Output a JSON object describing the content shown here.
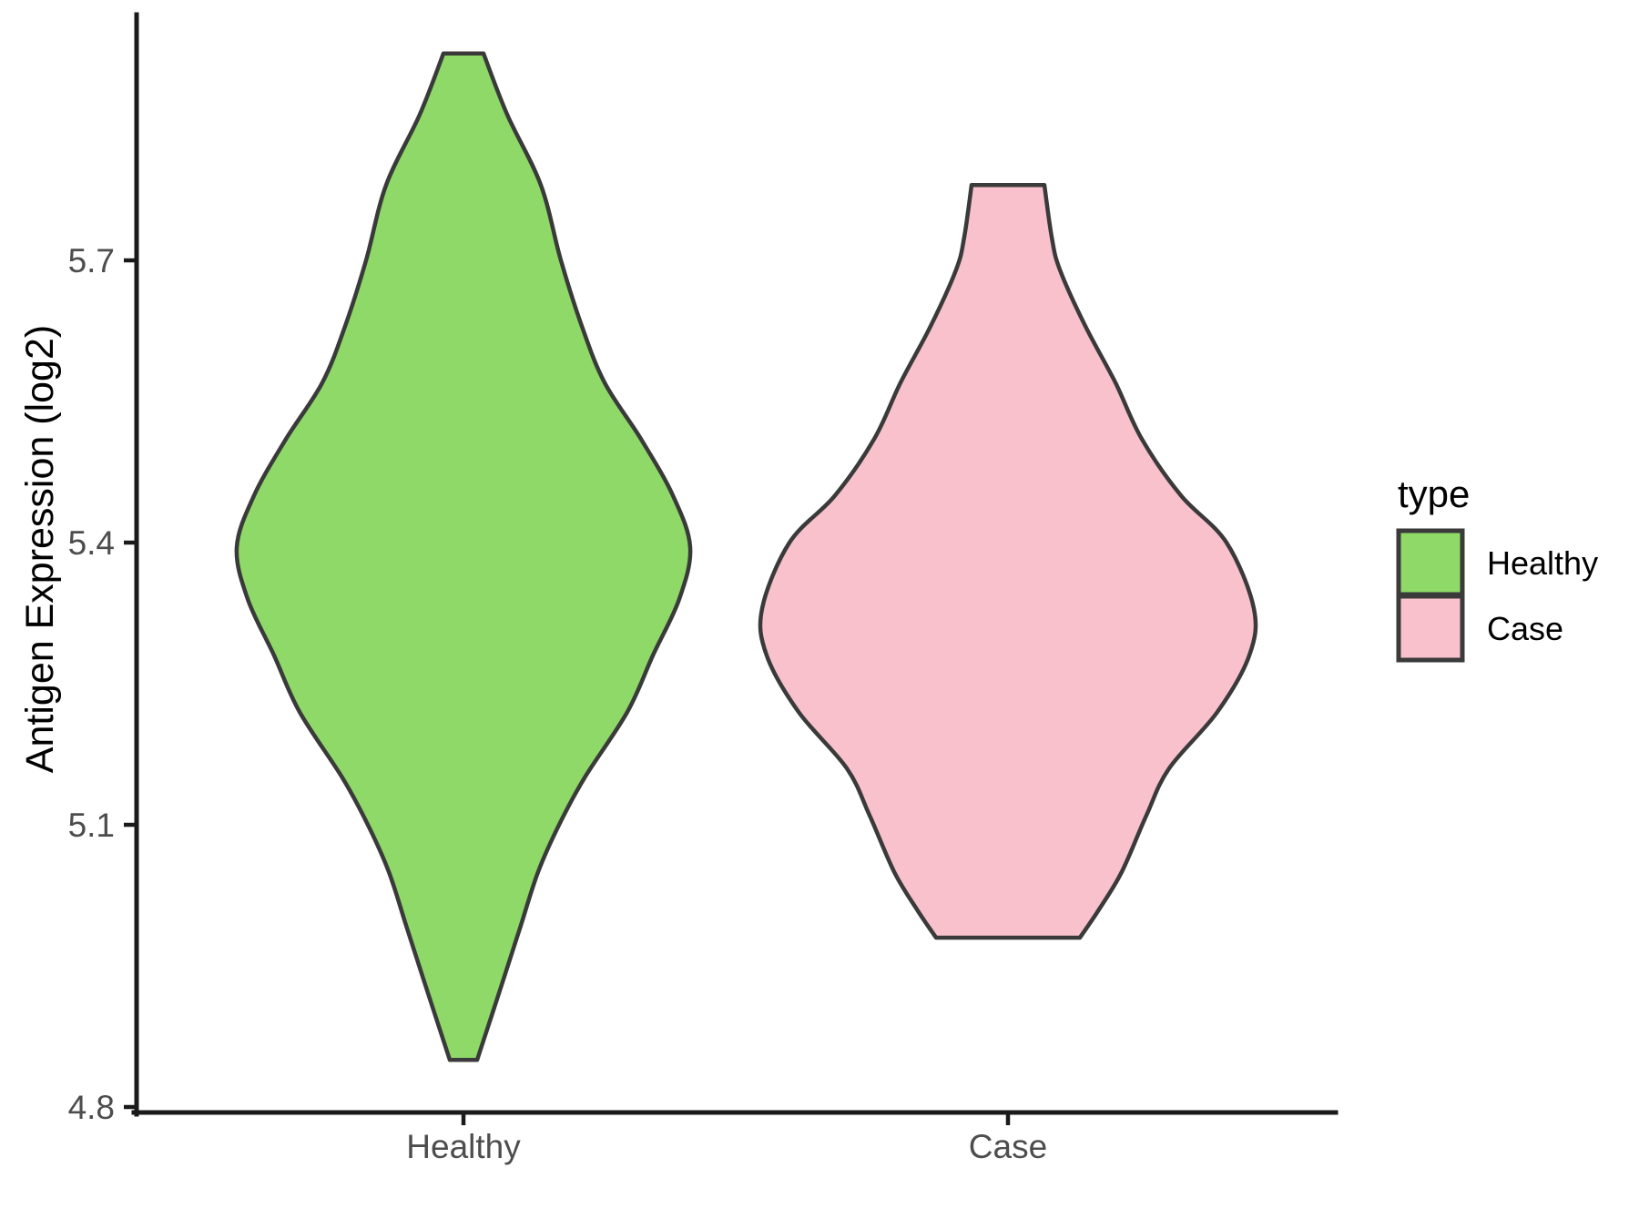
{
  "chart_data": {
    "type": "violin",
    "title": "",
    "xlabel": "",
    "ylabel": "Antigen Expression (log2)",
    "categories": [
      "Healthy",
      "Case"
    ],
    "y_ticks": [
      5.7,
      5.4,
      5.1,
      4.8
    ],
    "ylim": [
      4.8,
      5.96
    ],
    "grid": "off",
    "background": "#ffffff",
    "legend": {
      "title": "type",
      "position": "right",
      "entries": [
        {
          "label": "Healthy",
          "color": "#8ed968"
        },
        {
          "label": "Case",
          "color": "#f8c1cc"
        }
      ]
    },
    "series": [
      {
        "name": "Healthy",
        "fill": "#8ed968",
        "outline": "#3a3a3a",
        "range": [
          4.85,
          5.92
        ],
        "peak_value": 5.4,
        "profile_value_halfwidthpx": [
          [
            5.92,
            22
          ],
          [
            5.855,
            48
          ],
          [
            5.78,
            85
          ],
          [
            5.7,
            107
          ],
          [
            5.63,
            130
          ],
          [
            5.57,
            155
          ],
          [
            5.51,
            195
          ],
          [
            5.45,
            230
          ],
          [
            5.395,
            249
          ],
          [
            5.34,
            237
          ],
          [
            5.28,
            208
          ],
          [
            5.22,
            180
          ],
          [
            5.15,
            133
          ],
          [
            5.1,
            105
          ],
          [
            5.05,
            82
          ],
          [
            4.99,
            62
          ],
          [
            4.93,
            42
          ],
          [
            4.85,
            15
          ]
        ]
      },
      {
        "name": "Case",
        "fill": "#f8c1cc",
        "outline": "#3a3a3a",
        "range": [
          4.98,
          5.78
        ],
        "peak_value": 5.33,
        "profile_value_halfwidthpx": [
          [
            5.78,
            40
          ],
          [
            5.725,
            48
          ],
          [
            5.69,
            57
          ],
          [
            5.63,
            85
          ],
          [
            5.57,
            118
          ],
          [
            5.51,
            147
          ],
          [
            5.45,
            190
          ],
          [
            5.4,
            240
          ],
          [
            5.33,
            270
          ],
          [
            5.28,
            265
          ],
          [
            5.22,
            230
          ],
          [
            5.16,
            177
          ],
          [
            5.11,
            152
          ],
          [
            5.05,
            125
          ],
          [
            5.01,
            100
          ],
          [
            4.98,
            79
          ]
        ]
      }
    ]
  },
  "colors": {
    "axis_line": "#1a1a1a",
    "tick_text": "#4d4d4d",
    "title_text": "#000000",
    "violin_outline": "#3a3a3a"
  }
}
